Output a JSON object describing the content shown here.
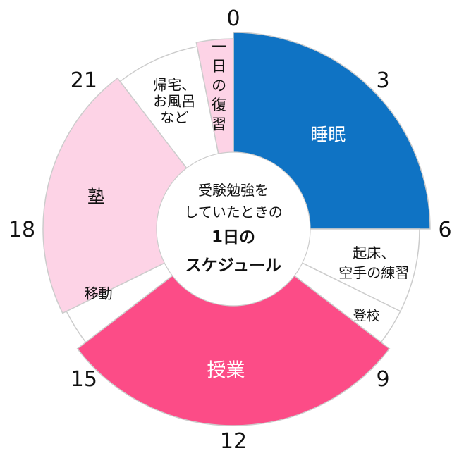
{
  "chart_data": {
    "type": "pie",
    "title": "受験勉強をしていたときの1日のスケジュール",
    "title_lines": [
      "受験勉強を",
      "していたときの",
      "1日の",
      "スケジュール"
    ],
    "unit": "hours",
    "hour_ticks": [
      {
        "hour": 0,
        "label": "0"
      },
      {
        "hour": 3,
        "label": "3"
      },
      {
        "hour": 6,
        "label": "6"
      },
      {
        "hour": 9,
        "label": "9"
      },
      {
        "hour": 12,
        "label": "12"
      },
      {
        "hour": 15,
        "label": "15"
      },
      {
        "hour": 18,
        "label": "18"
      },
      {
        "hour": 21,
        "label": "21"
      }
    ],
    "segments": [
      {
        "label": "睡眠",
        "lines": [
          "睡眠"
        ],
        "start": 0,
        "end": 6,
        "color": "#0f73c4",
        "text_color": "#ffffff"
      },
      {
        "label": "起床、空手の練習",
        "lines": [
          "起床、",
          "空手の練習"
        ],
        "start": 6,
        "end": 7.75,
        "color": "#ffffff",
        "text_color": "#111111"
      },
      {
        "label": "登校",
        "lines": [
          "登校"
        ],
        "start": 7.75,
        "end": 8.5,
        "color": "#ffffff",
        "text_color": "#111111"
      },
      {
        "label": "授業",
        "lines": [
          "授業"
        ],
        "start": 8.5,
        "end": 15.5,
        "color": "#fc4c87",
        "text_color": "#ffffff"
      },
      {
        "label": "移動",
        "lines": [
          "移動"
        ],
        "start": 15.5,
        "end": 16.25,
        "color": "#ffffff",
        "text_color": "#111111"
      },
      {
        "label": "塾",
        "lines": [
          "塾"
        ],
        "start": 16.25,
        "end": 21.5,
        "color": "#fdd3e6",
        "text_color": "#111111"
      },
      {
        "label": "帰宅、お風呂など",
        "lines": [
          "帰宅、",
          "お風呂",
          "など"
        ],
        "start": 21.5,
        "end": 23.25,
        "color": "#ffffff",
        "text_color": "#111111"
      },
      {
        "label": "一日の復習",
        "lines": [
          "一",
          "日",
          "の",
          "復",
          "習"
        ],
        "start": 23.25,
        "end": 24,
        "color": "#fdd3e6",
        "text_color": "#111111"
      }
    ]
  }
}
